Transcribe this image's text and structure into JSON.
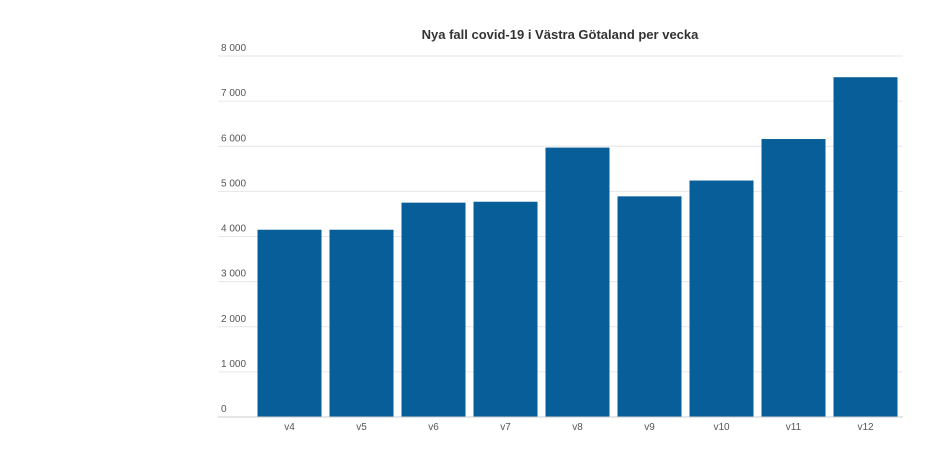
{
  "chart_data": {
    "type": "bar",
    "title": "Nya fall covid-19 i Västra Götaland per vecka",
    "xlabel": "",
    "ylabel": "",
    "categories": [
      "v4",
      "v5",
      "v6",
      "v7",
      "v8",
      "v9",
      "v10",
      "v11",
      "v12"
    ],
    "values": [
      4150,
      4150,
      4750,
      4770,
      5970,
      4890,
      5240,
      6160,
      7530
    ],
    "y_ticks": [
      "0",
      "1 000",
      "2 000",
      "3 000",
      "4 000",
      "5 000",
      "6 000",
      "7 000",
      "8 000"
    ],
    "ylim": [
      0,
      8000
    ],
    "grid": true,
    "legend": "none",
    "bar_color": "#075e99"
  }
}
